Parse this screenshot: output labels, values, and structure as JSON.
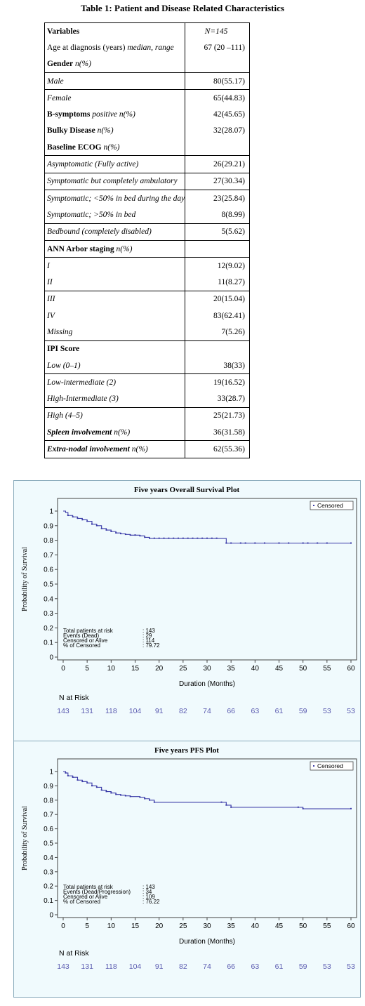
{
  "table": {
    "title": "Table 1: Patient and Disease Related Characteristics",
    "header": {
      "variable": "Variables",
      "value": "N=145"
    },
    "rows": [
      {
        "label": "Age at diagnosis (years)",
        "label_suffix": " median, range",
        "value": "67 (20 –111)",
        "style": "normal",
        "border_top": false
      },
      {
        "label": "Gender",
        "label_suffix": " n(%)",
        "value": "",
        "style": "bold",
        "border_top": false
      },
      {
        "label": "Male",
        "label_suffix": "",
        "value": "80(55.17)",
        "style": "italic",
        "border_top": true
      },
      {
        "label": "Female",
        "label_suffix": "",
        "value": "65(44.83)",
        "style": "italic",
        "border_top": true
      },
      {
        "label": "B-symptoms",
        "label_suffix": " positive n(%)",
        "value": "42(45.65)",
        "style": "bold",
        "border_top": false
      },
      {
        "label": "Bulky Disease",
        "label_suffix": "  n(%)",
        "value": "32(28.07)",
        "style": "bold",
        "border_top": false
      },
      {
        "label": "Baseline ECOG",
        "label_suffix": " n(%)",
        "value": "",
        "style": "bold",
        "border_top": false
      },
      {
        "label": "Asymptomatic (Fully active)",
        "label_suffix": "",
        "value": "26(29.21)",
        "style": "italic",
        "border_top": true
      },
      {
        "label": "Symptomatic but completely ambulatory",
        "label_suffix": "",
        "value": "27(30.34)",
        "style": "italic",
        "border_top": true
      },
      {
        "label": "Symptomatic; <50% in bed during the day",
        "label_suffix": "",
        "value": "23(25.84)",
        "style": "italic",
        "border_top": true
      },
      {
        "label": "Symptomatic; >50% in bed",
        "label_suffix": "",
        "value": "8(8.99)",
        "style": "italic",
        "border_top": false
      },
      {
        "label": "Bedbound (completely disabled)",
        "label_suffix": "",
        "value": "5(5.62)",
        "style": "italic",
        "border_top": true
      },
      {
        "label": "ANN Arbor staging",
        "label_suffix": " n(%)",
        "value": "",
        "style": "bold",
        "border_top": true
      },
      {
        "label": "I",
        "label_suffix": "",
        "value": "12(9.02)",
        "style": "italic",
        "border_top": true
      },
      {
        "label": "II",
        "label_suffix": "",
        "value": "11(8.27)",
        "style": "italic",
        "border_top": false
      },
      {
        "label": "III",
        "label_suffix": "",
        "value": "20(15.04)",
        "style": "italic",
        "border_top": true
      },
      {
        "label": "IV",
        "label_suffix": "",
        "value": "83(62.41)",
        "style": "italic",
        "border_top": false
      },
      {
        "label": "Missing",
        "label_suffix": "",
        "value": "7(5.26)",
        "style": "italic",
        "border_top": false
      },
      {
        "label": "IPI Score",
        "label_suffix": "",
        "value": "",
        "style": "bold",
        "border_top": true
      },
      {
        "label": "Low (0–1)",
        "label_suffix": "",
        "value": "38(33)",
        "style": "italic",
        "border_top": false
      },
      {
        "label": "Low-intermediate (2)",
        "label_suffix": "",
        "value": "19(16.52)",
        "style": "italic",
        "border_top": true
      },
      {
        "label": "High-Intermediate  (3)",
        "label_suffix": "",
        "value": "33(28.7)",
        "style": "italic",
        "border_top": false
      },
      {
        "label": "High (4–5)",
        "label_suffix": "",
        "value": "25(21.73)",
        "style": "italic",
        "border_top": true
      },
      {
        "label": "Spleen involvement",
        "label_suffix": "  n(%)",
        "value": "36(31.58)",
        "style": "bolditalic",
        "border_top": false
      },
      {
        "label": "Extra-nodal involvement",
        "label_suffix": " n(%)",
        "value": "62(55.36)",
        "style": "bolditalic",
        "border_top": true
      }
    ]
  },
  "chart_data": [
    {
      "type": "line",
      "title": "Five years Overall Survival Plot",
      "xlabel": "Duration (Months)",
      "ylabel": "Probability of Survival",
      "xlim": [
        0,
        60
      ],
      "ylim": [
        0,
        1.0
      ],
      "xticks": [
        0,
        5,
        10,
        15,
        20,
        25,
        30,
        35,
        40,
        45,
        50,
        55,
        60
      ],
      "yticks": [
        0.0,
        0.1,
        0.2,
        0.3,
        0.4,
        0.5,
        0.6,
        0.7,
        0.8,
        0.9,
        1.0
      ],
      "legend": {
        "label": "Censored",
        "position": "top-right"
      },
      "series": [
        {
          "name": "Censored",
          "x": [
            0,
            0.5,
            1,
            2,
            3,
            4,
            5,
            6,
            7,
            8,
            9,
            10,
            11,
            12,
            13,
            14,
            15,
            16,
            17,
            18,
            33,
            34,
            60
          ],
          "y": [
            1.0,
            0.99,
            0.97,
            0.96,
            0.95,
            0.94,
            0.93,
            0.91,
            0.9,
            0.88,
            0.87,
            0.86,
            0.85,
            0.845,
            0.84,
            0.835,
            0.835,
            0.83,
            0.82,
            0.813,
            0.813,
            0.78,
            0.78
          ],
          "censored_x": [
            1,
            2,
            3,
            4,
            5,
            6,
            7,
            8,
            9,
            10,
            11,
            12,
            13,
            14,
            15,
            16,
            17,
            18,
            19,
            20,
            21,
            22,
            23,
            24,
            25,
            26,
            27,
            28,
            29,
            30,
            31,
            32,
            34,
            35,
            37,
            38,
            40,
            42,
            45,
            47,
            50,
            51,
            53,
            55,
            60
          ]
        }
      ],
      "stats": [
        {
          "label": "Total patients at risk",
          "value": ": 143"
        },
        {
          "label": "Events (Dead)",
          "value": ": 29"
        },
        {
          "label": "Censored or Alive",
          "value": ": 114"
        },
        {
          "label": "% of Censored",
          "value": ": 79.72"
        }
      ],
      "risk_table": {
        "label": "N at Risk",
        "x": [
          0,
          5,
          10,
          15,
          20,
          25,
          30,
          35,
          40,
          45,
          50,
          55,
          60
        ],
        "values": [
          "143",
          "131",
          "118",
          "104",
          "91",
          "82",
          "74",
          "66",
          "63",
          "61",
          "59",
          "53",
          "53"
        ]
      }
    },
    {
      "type": "line",
      "title": "Five years PFS Plot",
      "xlabel": "Duration (Months)",
      "ylabel": "Probability of Survival",
      "xlim": [
        0,
        60
      ],
      "ylim": [
        0,
        1.0
      ],
      "xticks": [
        0,
        5,
        10,
        15,
        20,
        25,
        30,
        35,
        40,
        45,
        50,
        55,
        60
      ],
      "yticks": [
        0.0,
        0.1,
        0.2,
        0.3,
        0.4,
        0.5,
        0.6,
        0.7,
        0.8,
        0.9,
        1.0
      ],
      "legend": {
        "label": "Censored",
        "position": "top-right"
      },
      "series": [
        {
          "name": "Censored",
          "x": [
            0,
            0.5,
            1,
            2,
            3,
            4,
            5,
            6,
            7,
            8,
            9,
            10,
            11,
            12,
            13,
            14,
            16,
            17,
            18,
            19,
            33,
            34,
            35,
            49,
            50,
            60
          ],
          "y": [
            1.0,
            0.99,
            0.97,
            0.96,
            0.94,
            0.93,
            0.92,
            0.9,
            0.89,
            0.87,
            0.86,
            0.85,
            0.84,
            0.835,
            0.83,
            0.825,
            0.82,
            0.81,
            0.8,
            0.785,
            0.785,
            0.765,
            0.75,
            0.75,
            0.74,
            0.74
          ]
        }
      ],
      "stats": [
        {
          "label": "Total patients at risk",
          "value": ": 143"
        },
        {
          "label": "Events (Dead/Progression)",
          "value": ": 34"
        },
        {
          "label": "Censored or Alive",
          "value": ": 109"
        },
        {
          "label": "% of Censored",
          "value": ": 76.22"
        }
      ],
      "risk_table": {
        "label": "N at Risk",
        "x": [
          0,
          5,
          10,
          15,
          20,
          25,
          30,
          35,
          40,
          45,
          50,
          55,
          60
        ],
        "values": [
          "143",
          "131",
          "118",
          "104",
          "91",
          "82",
          "74",
          "66",
          "63",
          "61",
          "59",
          "53",
          "53"
        ]
      }
    }
  ],
  "colors": {
    "curve": "#3a3aa8",
    "risk_text": "#5a5ab0",
    "panel_bg": "#f0fafd"
  }
}
